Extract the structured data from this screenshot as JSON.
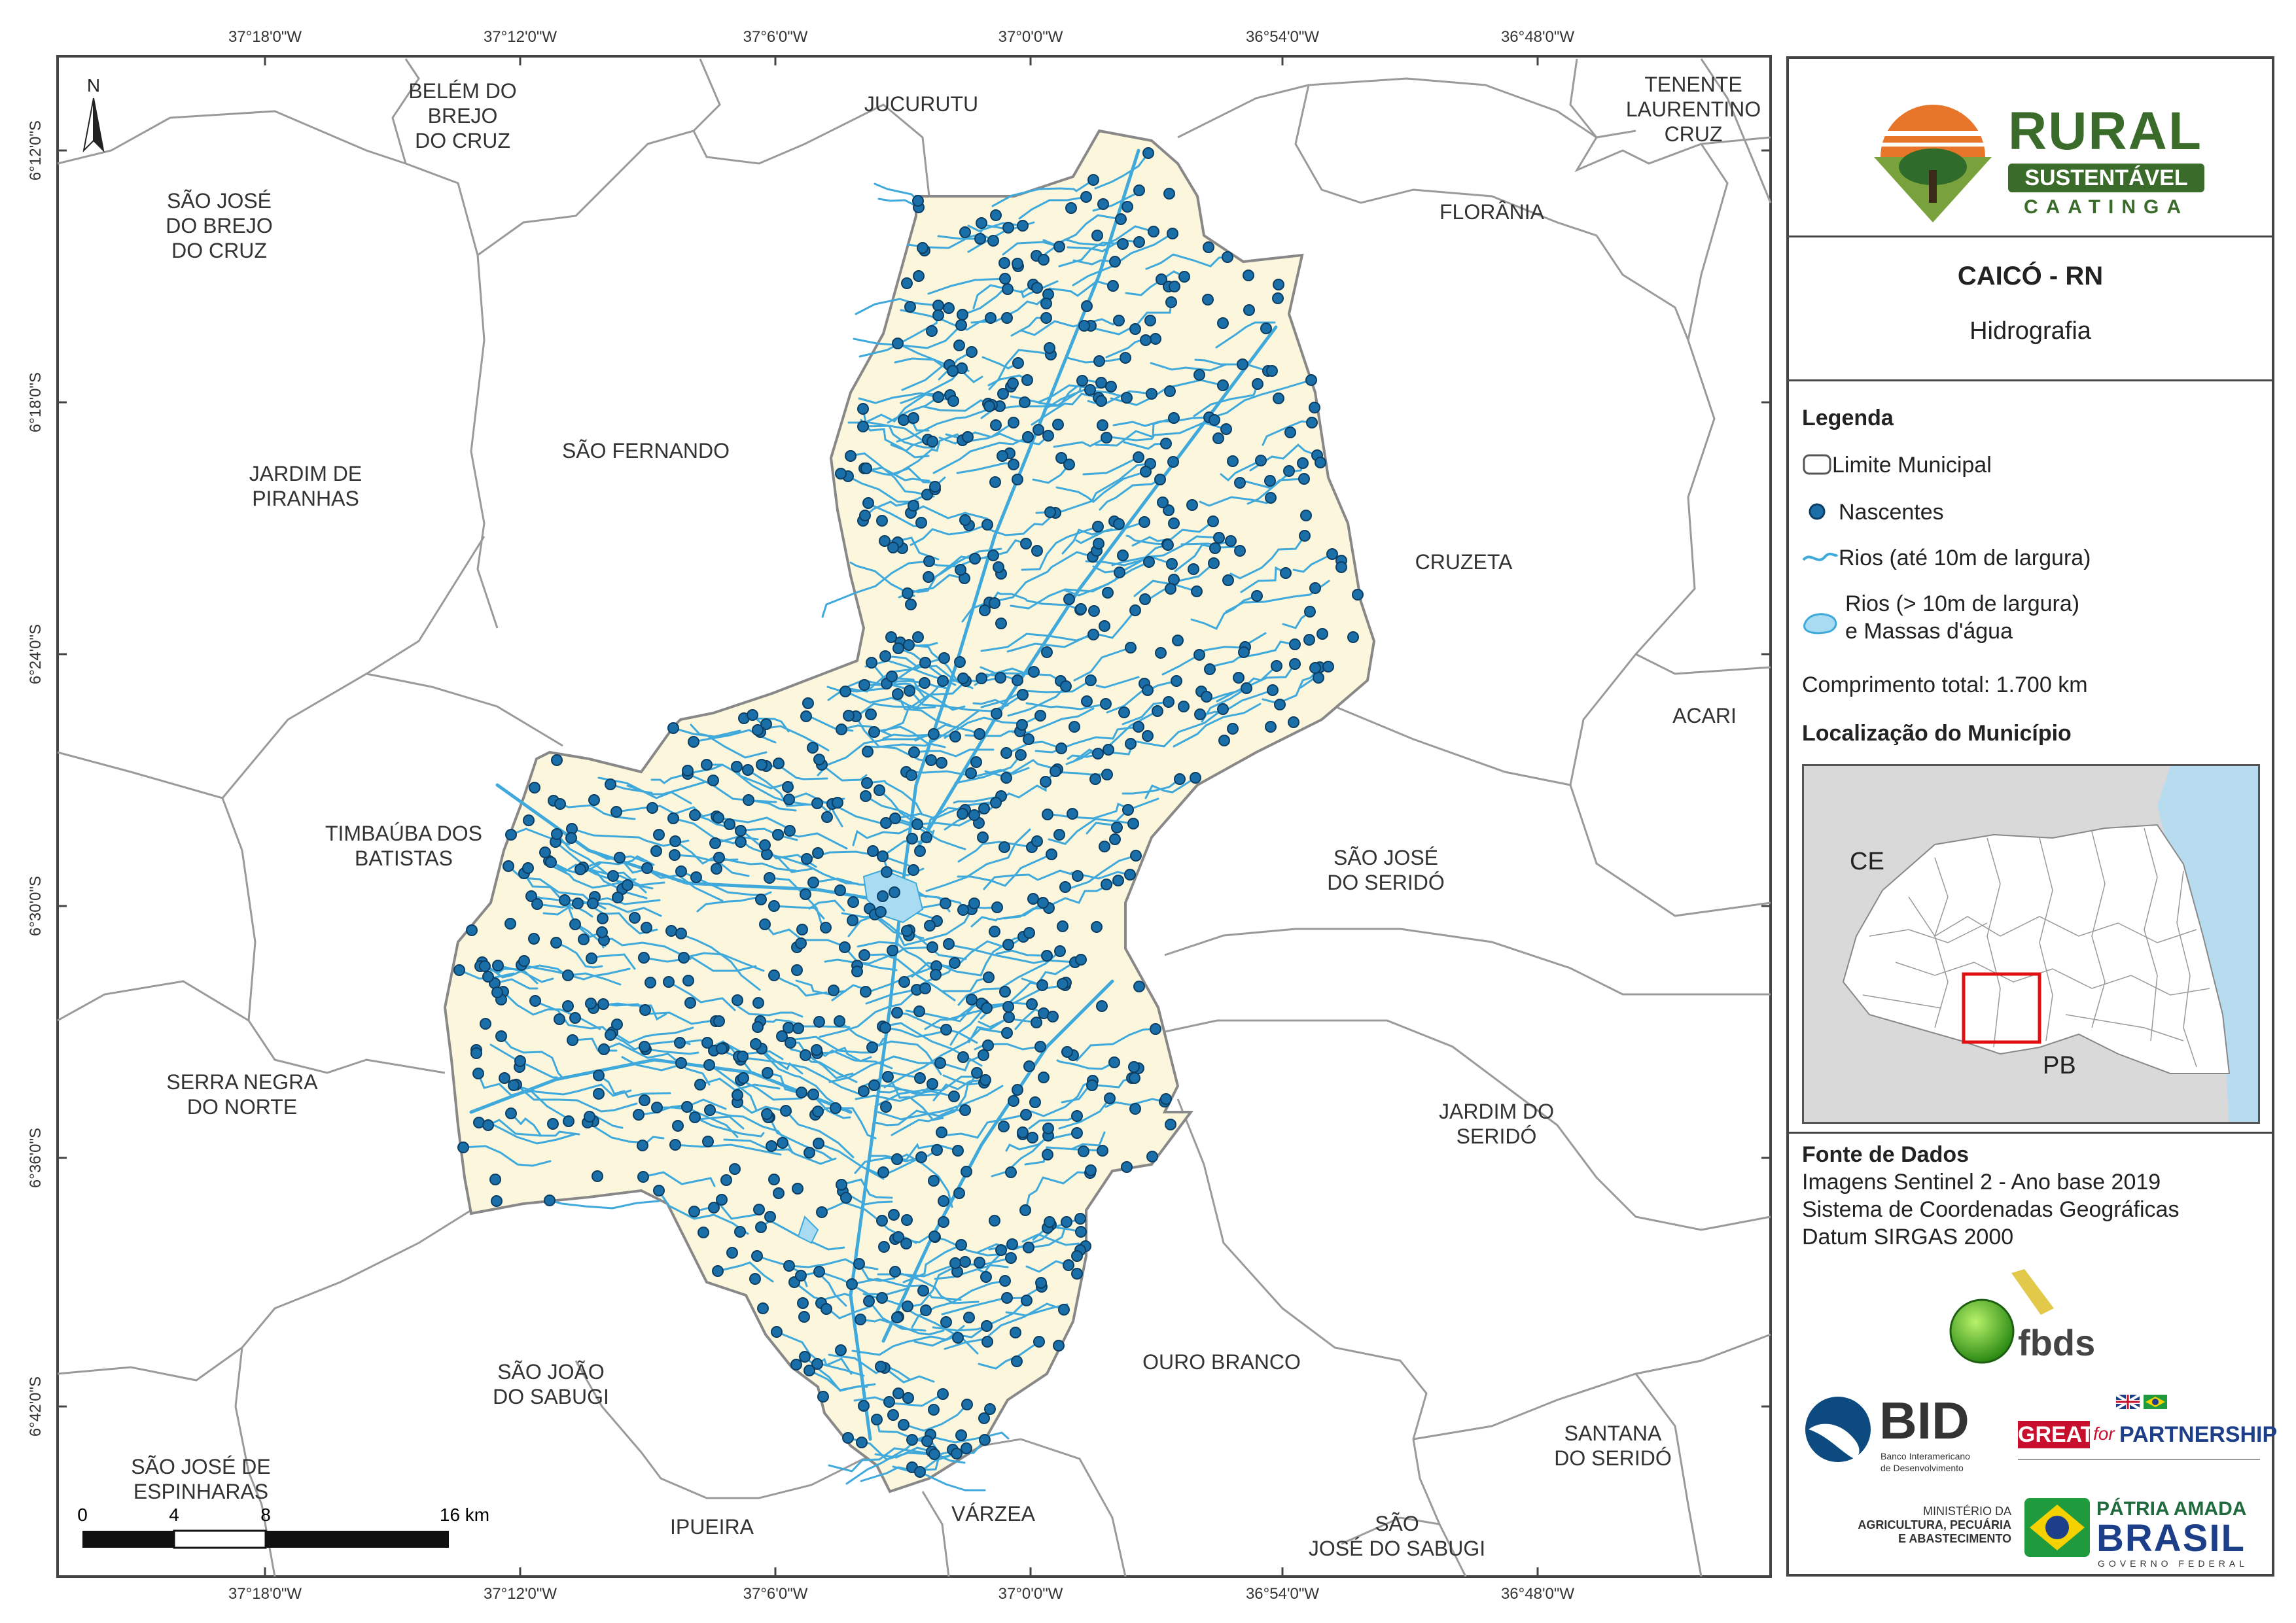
{
  "map": {
    "north_label": "N",
    "coords_top": [
      "37°18'0\"W",
      "37°12'0\"W",
      "37°6'0\"W",
      "37°0'0\"W",
      "36°54'0\"W",
      "36°48'0\"W"
    ],
    "coords_bottom": [
      "37°18'0\"W",
      "37°12'0\"W",
      "37°6'0\"W",
      "37°0'0\"W",
      "36°54'0\"W",
      "36°48'0\"W"
    ],
    "coords_side": [
      "6°12'0\"S",
      "6°18'0\"S",
      "6°24'0\"S",
      "6°30'0\"S",
      "6°36'0\"S",
      "6°42'0\"S"
    ],
    "scale": {
      "ticks": [
        "0",
        "4",
        "8",
        "16 km"
      ]
    },
    "neighbors": [
      {
        "name": "belem",
        "lines": [
          "BELÉM DO",
          "BREJO",
          "DO CRUZ"
        ]
      },
      {
        "name": "jucurutu",
        "lines": [
          "JUCURUTU"
        ]
      },
      {
        "name": "tenente",
        "lines": [
          "TENENTE",
          "LAURENTINO",
          "CRUZ"
        ]
      },
      {
        "name": "sao-jose-brejo",
        "lines": [
          "SÃO JOSÉ",
          "DO BREJO",
          "DO CRUZ"
        ]
      },
      {
        "name": "floriania",
        "lines": [
          "FLORÂNIA"
        ]
      },
      {
        "name": "sao-fernando",
        "lines": [
          "SÃO FERNANDO"
        ]
      },
      {
        "name": "jardim-piranhas",
        "lines": [
          "JARDIM DE",
          "PIRANHAS"
        ]
      },
      {
        "name": "cruzeta",
        "lines": [
          "CRUZETA"
        ]
      },
      {
        "name": "acari",
        "lines": [
          "ACARI"
        ]
      },
      {
        "name": "timbauba",
        "lines": [
          "TIMBAÚBA DOS",
          "BATISTAS"
        ]
      },
      {
        "name": "sao-jose-serido",
        "lines": [
          "SÃO JOSÉ",
          "DO SERIDÓ"
        ]
      },
      {
        "name": "serra-negra",
        "lines": [
          "SERRA NEGRA",
          "DO NORTE"
        ]
      },
      {
        "name": "jardim-serido",
        "lines": [
          "JARDIM DO",
          "SERIDÓ"
        ]
      },
      {
        "name": "sao-joao-sabugi",
        "lines": [
          "SÃO JOÃO",
          "DO SABUGI"
        ]
      },
      {
        "name": "ouro-branco",
        "lines": [
          "OURO BRANCO"
        ]
      },
      {
        "name": "santana",
        "lines": [
          "SANTANA",
          "DO SERIDÓ"
        ]
      },
      {
        "name": "sao-jose-espinharas",
        "lines": [
          "SÃO JOSÉ DE",
          "ESPINHARAS"
        ]
      },
      {
        "name": "ipueira",
        "lines": [
          "IPUEIRA"
        ]
      },
      {
        "name": "varzea",
        "lines": [
          "VÁRZEA"
        ]
      },
      {
        "name": "sao-jose-sabugi",
        "lines": [
          "SÃO",
          "JOSÉ DO SABUGI"
        ]
      }
    ]
  },
  "panel": {
    "logo": {
      "line1": "RURAL",
      "line2": "SUSTENTÁVEL",
      "line3": "CAATINGA"
    },
    "title": "CAICÓ - RN",
    "subtitle": "Hidrografia",
    "legend": {
      "heading": "Legenda",
      "items": [
        "Limite Municipal",
        "Nascentes",
        "Rios (até 10m de largura)",
        "Rios (> 10m de largura)",
        "e Massas d'água"
      ],
      "total": "Comprimento total:  1.700 km"
    },
    "location": {
      "heading": "Localização do Município",
      "ce": "CE",
      "pb": "PB"
    },
    "source": {
      "heading": "Fonte de Dados",
      "lines": [
        "Imagens Sentinel 2 - Ano base 2019",
        "Sistema de Coordenadas Geográficas",
        "Datum SIRGAS 2000"
      ]
    },
    "logos": {
      "fbds": "fbds",
      "bid": "BID",
      "bid_sub1": "Banco Interamericano",
      "bid_sub2": "de Desenvolvimento",
      "great": "GREAT",
      "great_for": "for",
      "partnership": "PARTNERSHIP",
      "min1": "MINISTÉRIO DA",
      "min2": "AGRICULTURA, PECUÁRIA",
      "min3": "E ABASTECIMENTO",
      "patria": "PÁTRIA AMADA",
      "brasil": "BRASIL",
      "gov": "GOVERNO FEDERAL"
    }
  },
  "colors": {
    "municipality_fill": "#fbf6dc",
    "river": "#3fa9dc",
    "spring": "#1a6fa8",
    "boundary": "#888888",
    "ocean": "#b8dcef",
    "locator_frame": "#e01010"
  }
}
